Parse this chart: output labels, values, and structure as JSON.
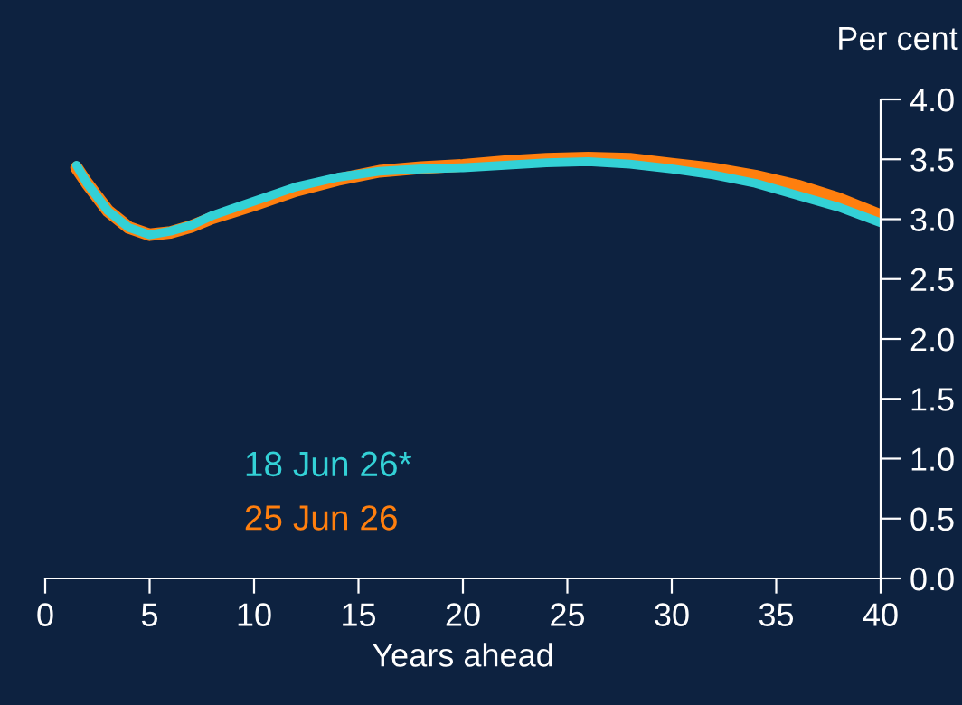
{
  "chart_data": {
    "type": "line",
    "xlabel": "Years ahead",
    "ylabel": "Per cent",
    "xlim": [
      0,
      40
    ],
    "xticks": [
      0,
      5,
      10,
      15,
      20,
      25,
      30,
      35,
      40
    ],
    "ylim": [
      0,
      4
    ],
    "yticks": [
      {
        "value": 0,
        "label": "0.0"
      },
      {
        "value": 0.5,
        "label": "0.5"
      },
      {
        "value": 1,
        "label": "1.0"
      },
      {
        "value": 1.5,
        "label": "1.5"
      },
      {
        "value": 2,
        "label": "2.0"
      },
      {
        "value": 2.5,
        "label": "2.5"
      },
      {
        "value": 3,
        "label": "3.0"
      },
      {
        "value": 3.5,
        "label": "3.5"
      },
      {
        "value": 4,
        "label": "4.0"
      }
    ],
    "grid": false,
    "legend": "bottom left",
    "marker": "none",
    "line_style": "solid",
    "series": [
      {
        "name": "25 Jun 26",
        "color": "#ff7f0e",
        "x": [
          1.5,
          2,
          3,
          4,
          5,
          6,
          7,
          8,
          10,
          12,
          14,
          16,
          18,
          20,
          22,
          24,
          26,
          28,
          30,
          32,
          34,
          36,
          38,
          40
        ],
        "values": [
          3.43,
          3.3,
          3.07,
          2.93,
          2.87,
          2.89,
          2.94,
          3.01,
          3.12,
          3.24,
          3.33,
          3.4,
          3.43,
          3.45,
          3.48,
          3.5,
          3.51,
          3.5,
          3.46,
          3.42,
          3.36,
          3.28,
          3.17,
          3.03
        ]
      },
      {
        "name": "18 Jun 26*",
        "color": "#33d1d6",
        "x": [
          1.5,
          2,
          3,
          4,
          5,
          6,
          7,
          8,
          10,
          12,
          14,
          16,
          18,
          20,
          22,
          24,
          26,
          28,
          30,
          32,
          34,
          36,
          38,
          40
        ],
        "values": [
          3.45,
          3.3,
          3.07,
          2.93,
          2.87,
          2.9,
          2.95,
          3.03,
          3.15,
          3.27,
          3.35,
          3.4,
          3.42,
          3.43,
          3.45,
          3.47,
          3.48,
          3.46,
          3.42,
          3.37,
          3.3,
          3.2,
          3.1,
          2.97
        ]
      }
    ]
  }
}
